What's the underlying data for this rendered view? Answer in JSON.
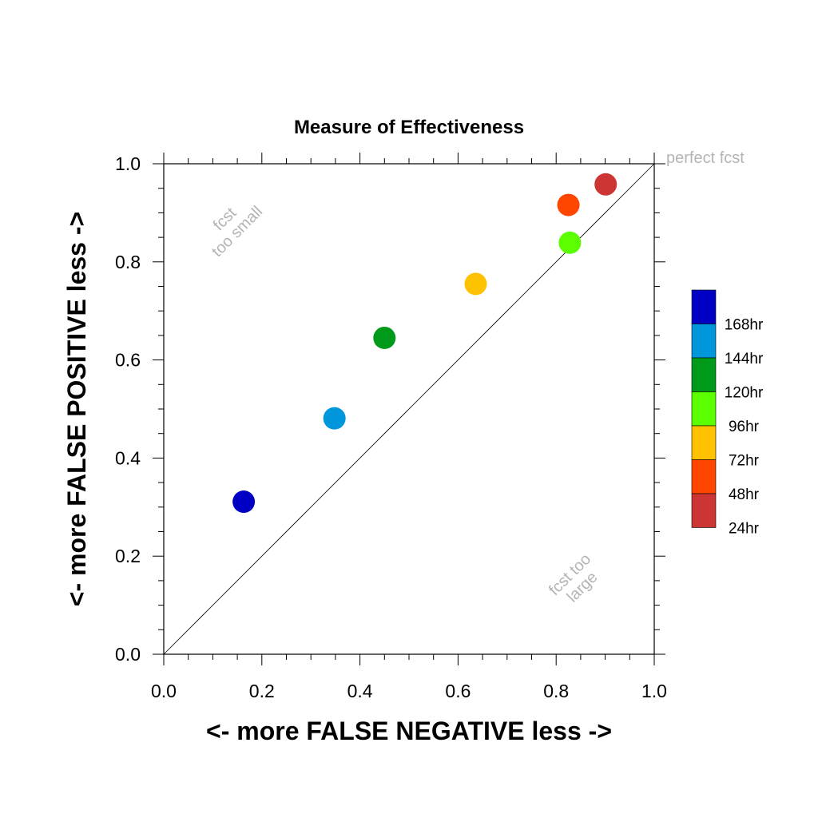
{
  "chart_data": {
    "type": "scatter",
    "title": "Measure of Effectiveness",
    "xlabel": "<- more   FALSE NEGATIVE   less ->",
    "ylabel": "<- more   FALSE POSITIVE   less ->",
    "xlim": [
      0.0,
      1.0
    ],
    "ylim": [
      0.0,
      1.0
    ],
    "xticks": [
      "0.0",
      "0.2",
      "0.4",
      "0.6",
      "0.8",
      "1.0"
    ],
    "yticks": [
      "0.0",
      "0.2",
      "0.4",
      "0.6",
      "0.8",
      "1.0"
    ],
    "grid": false,
    "diagonal_reference_line": true,
    "annotations": {
      "perfect": "perfect fcst",
      "small_line1": "fcst",
      "small_line2": "too small",
      "large_line1": "fcst too",
      "large_line2": "large"
    },
    "legend_position": "right",
    "points": [
      {
        "label": "168hr",
        "x": 0.163,
        "y": 0.311,
        "color": "#0000c4"
      },
      {
        "label": "144hr",
        "x": 0.348,
        "y": 0.481,
        "color": "#0096dc"
      },
      {
        "label": "120hr",
        "x": 0.45,
        "y": 0.645,
        "color": "#009a1a"
      },
      {
        "label": "96hr",
        "x": 0.828,
        "y": 0.839,
        "color": "#5cff00"
      },
      {
        "label": "72hr",
        "x": 0.636,
        "y": 0.755,
        "color": "#ffc200"
      },
      {
        "label": "48hr",
        "x": 0.825,
        "y": 0.916,
        "color": "#ff4600"
      },
      {
        "label": "24hr",
        "x": 0.901,
        "y": 0.958,
        "color": "#cd3535"
      }
    ]
  }
}
